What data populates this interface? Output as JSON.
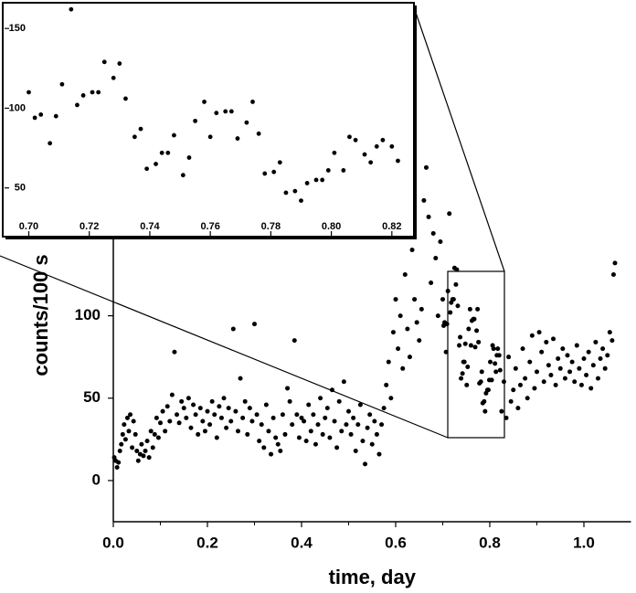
{
  "chart_data": [
    {
      "type": "scatter",
      "xlabel": "time, day",
      "ylabel": "counts/100 s",
      "color": "#000000",
      "xlim": [
        0,
        1.1
      ],
      "ylim": [
        -25,
        290
      ],
      "xticks": [
        {
          "value": 0,
          "label": "0.0"
        },
        0.2,
        0.4,
        0.6,
        0.8,
        {
          "value": 1,
          "label": "1.0"
        }
      ],
      "yticks": [
        0,
        50,
        100
      ],
      "x": [
        0.002,
        0.005,
        0.008,
        0.011,
        0.014,
        0.017,
        0.02,
        0.023,
        0.026,
        0.03,
        0.033,
        0.036,
        0.04,
        0.043,
        0.047,
        0.05,
        0.053,
        0.057,
        0.06,
        0.064,
        0.068,
        0.072,
        0.076,
        0.08,
        0.084,
        0.088,
        0.092,
        0.096,
        0.1,
        0.105,
        0.11,
        0.115,
        0.12,
        0.125,
        0.13,
        0.135,
        0.14,
        0.145,
        0.15,
        0.155,
        0.16,
        0.165,
        0.17,
        0.175,
        0.18,
        0.185,
        0.19,
        0.195,
        0.2,
        0.205,
        0.21,
        0.215,
        0.22,
        0.225,
        0.23,
        0.235,
        0.24,
        0.245,
        0.25,
        0.255,
        0.26,
        0.265,
        0.27,
        0.275,
        0.28,
        0.285,
        0.29,
        0.295,
        0.3,
        0.305,
        0.31,
        0.315,
        0.32,
        0.325,
        0.33,
        0.335,
        0.34,
        0.345,
        0.35,
        0.355,
        0.36,
        0.365,
        0.37,
        0.375,
        0.38,
        0.385,
        0.39,
        0.395,
        0.4,
        0.405,
        0.41,
        0.415,
        0.42,
        0.425,
        0.43,
        0.435,
        0.44,
        0.445,
        0.45,
        0.455,
        0.46,
        0.465,
        0.47,
        0.475,
        0.48,
        0.485,
        0.49,
        0.495,
        0.5,
        0.505,
        0.51,
        0.515,
        0.52,
        0.525,
        0.53,
        0.535,
        0.54,
        0.545,
        0.55,
        0.555,
        0.56,
        0.565,
        0.57,
        0.575,
        0.58,
        0.585,
        0.59,
        0.595,
        0.6,
        0.605,
        0.61,
        0.615,
        0.62,
        0.625,
        0.63,
        0.635,
        0.64,
        0.645,
        0.65,
        0.655,
        0.66,
        0.665,
        0.67,
        0.675,
        0.68,
        0.685,
        0.69,
        0.695,
        0.7,
        0.702,
        0.704,
        0.707,
        0.709,
        0.711,
        0.714,
        0.716,
        0.718,
        0.721,
        0.723,
        0.725,
        0.728,
        0.73,
        0.732,
        0.735,
        0.737,
        0.739,
        0.742,
        0.744,
        0.746,
        0.748,
        0.751,
        0.753,
        0.755,
        0.758,
        0.76,
        0.762,
        0.765,
        0.767,
        0.769,
        0.772,
        0.774,
        0.776,
        0.778,
        0.781,
        0.783,
        0.785,
        0.788,
        0.79,
        0.792,
        0.795,
        0.797,
        0.799,
        0.801,
        0.804,
        0.806,
        0.808,
        0.811,
        0.813,
        0.815,
        0.817,
        0.82,
        0.822,
        0.825,
        0.83,
        0.835,
        0.84,
        0.845,
        0.85,
        0.855,
        0.86,
        0.865,
        0.87,
        0.875,
        0.88,
        0.885,
        0.89,
        0.895,
        0.9,
        0.905,
        0.91,
        0.915,
        0.92,
        0.925,
        0.93,
        0.935,
        0.94,
        0.945,
        0.95,
        0.955,
        0.96,
        0.965,
        0.97,
        0.975,
        0.98,
        0.985,
        0.99,
        0.995,
        1.0,
        1.005,
        1.01,
        1.015,
        1.02,
        1.025,
        1.03,
        1.035,
        1.04,
        1.045,
        1.05,
        1.055,
        1.06,
        1.063,
        1.066
      ],
      "values": [
        14,
        12,
        8,
        11,
        18,
        22,
        28,
        34,
        25,
        38,
        30,
        40,
        20,
        36,
        28,
        18,
        12,
        16,
        22,
        15,
        18,
        24,
        14,
        30,
        20,
        28,
        38,
        26,
        35,
        42,
        30,
        45,
        36,
        52,
        78,
        40,
        35,
        48,
        44,
        38,
        50,
        32,
        46,
        40,
        28,
        44,
        36,
        30,
        42,
        34,
        48,
        40,
        26,
        45,
        38,
        50,
        32,
        44,
        36,
        92,
        42,
        30,
        62,
        38,
        48,
        28,
        44,
        36,
        95,
        40,
        24,
        34,
        20,
        46,
        30,
        16,
        38,
        26,
        22,
        18,
        40,
        28,
        56,
        48,
        34,
        85,
        40,
        26,
        38,
        36,
        24,
        46,
        30,
        40,
        22,
        34,
        50,
        28,
        38,
        44,
        26,
        55,
        36,
        20,
        48,
        30,
        60,
        34,
        42,
        28,
        38,
        18,
        34,
        46,
        24,
        10,
        32,
        40,
        22,
        36,
        28,
        16,
        34,
        44,
        58,
        72,
        50,
        90,
        110,
        80,
        100,
        68,
        125,
        92,
        75,
        140,
        110,
        96,
        85,
        104,
        170,
        190,
        160,
        120,
        150,
        135,
        100,
        145,
        110,
        94,
        96,
        78,
        95,
        115,
        162,
        102,
        108,
        110,
        110,
        129,
        119,
        128,
        106,
        82,
        87,
        62,
        65,
        72,
        72,
        83,
        58,
        69,
        92,
        104,
        82,
        97,
        98,
        98,
        81,
        91,
        104,
        84,
        59,
        60,
        66,
        47,
        48,
        42,
        53,
        55,
        55,
        61,
        72,
        61,
        82,
        80,
        71,
        66,
        76,
        80,
        76,
        67,
        42,
        60,
        38,
        75,
        48,
        55,
        68,
        44,
        58,
        80,
        62,
        50,
        72,
        88,
        56,
        66,
        90,
        78,
        60,
        84,
        70,
        64,
        86,
        58,
        74,
        68,
        80,
        62,
        76,
        66,
        72,
        60,
        82,
        68,
        58,
        74,
        64,
        78,
        56,
        70,
        84,
        62,
        74,
        80,
        68,
        76,
        90,
        85,
        125,
        132
      ]
    },
    {
      "type": "scatter",
      "color": "#000000",
      "xlim": [
        0.692,
        0.827
      ],
      "ylim": [
        20,
        165
      ],
      "xticks": [
        {
          "value": 0.7,
          "label": "0.70"
        },
        0.72,
        0.74,
        0.76,
        0.78,
        {
          "value": 0.8,
          "label": "0.80"
        },
        0.82
      ],
      "yticks": [
        50,
        100,
        150
      ],
      "x": [
        0.7,
        0.702,
        0.704,
        0.707,
        0.709,
        0.711,
        0.714,
        0.716,
        0.718,
        0.721,
        0.723,
        0.725,
        0.728,
        0.73,
        0.732,
        0.735,
        0.737,
        0.739,
        0.742,
        0.744,
        0.746,
        0.748,
        0.751,
        0.753,
        0.755,
        0.758,
        0.76,
        0.762,
        0.765,
        0.767,
        0.769,
        0.772,
        0.774,
        0.776,
        0.778,
        0.781,
        0.783,
        0.785,
        0.788,
        0.79,
        0.792,
        0.795,
        0.797,
        0.799,
        0.801,
        0.804,
        0.806,
        0.808,
        0.811,
        0.813,
        0.815,
        0.817,
        0.82,
        0.822
      ],
      "values": [
        110,
        94,
        96,
        78,
        95,
        115,
        162,
        102,
        108,
        110,
        110,
        129,
        119,
        128,
        106,
        82,
        87,
        62,
        65,
        72,
        72,
        83,
        58,
        69,
        92,
        104,
        82,
        97,
        98,
        98,
        81,
        91,
        104,
        84,
        59,
        60,
        66,
        47,
        48,
        42,
        53,
        55,
        55,
        61,
        72,
        61,
        82,
        80,
        71,
        66,
        76,
        80,
        76,
        67
      ]
    }
  ]
}
